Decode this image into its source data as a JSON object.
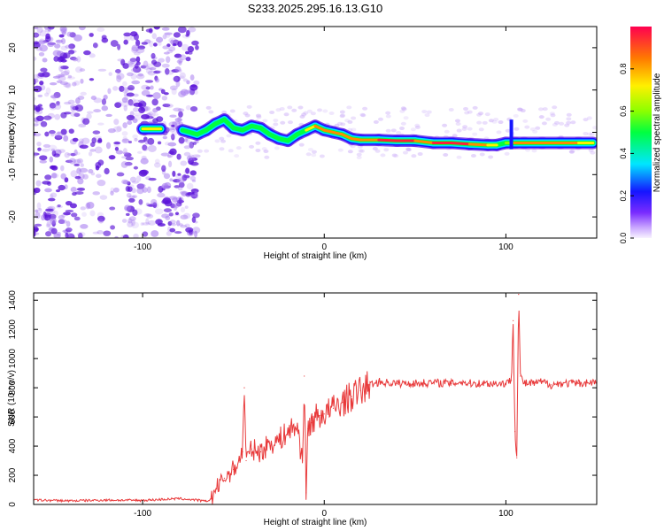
{
  "title": "S233.2025.295.16.13.G10",
  "colors": {
    "snr_line": "#e8393a",
    "blob": "#8a3ce6",
    "frame": "#000000"
  },
  "chart_data": [
    {
      "type": "heatmap",
      "name": "spectrogram",
      "xlabel": "Height of straight line (km)",
      "ylabel": "Frequency (Hz)",
      "xlim": [
        -160,
        150
      ],
      "ylim": [
        -25,
        25
      ],
      "xticks": [
        -100,
        0,
        100
      ],
      "xtick_labels": [
        "-100",
        "0",
        "100"
      ],
      "yticks": [
        20,
        10,
        0,
        -10,
        -20
      ],
      "ytick_labels": [
        "20",
        "10",
        "0",
        "-10",
        "-20"
      ],
      "ridge": {
        "description_hint": "frequency ridge of max normalized amplitude",
        "x": [
          -100,
          -90,
          -78,
          -70,
          -65,
          -60,
          -55,
          -50,
          -45,
          -40,
          -35,
          -30,
          -25,
          -20,
          -15,
          -10,
          -5,
          0,
          5,
          10,
          15,
          20,
          30,
          40,
          50,
          60,
          70,
          80,
          90,
          95,
          100,
          105,
          110,
          120,
          130,
          140,
          148
        ],
        "y": [
          0.8,
          0.8,
          0.5,
          -0.5,
          0.5,
          2.0,
          3.0,
          1.0,
          0.5,
          1.5,
          1.0,
          -0.5,
          -1.5,
          -2.0,
          -0.5,
          0.5,
          1.5,
          0.5,
          0.0,
          -0.5,
          -1.5,
          -1.8,
          -1.8,
          -2.0,
          -2.0,
          -2.5,
          -2.5,
          -2.8,
          -3.0,
          -3.0,
          -2.5,
          -2.5,
          -2.5,
          -2.5,
          -2.5,
          -2.5,
          -2.5
        ],
        "amplitude": [
          0.7,
          0.8,
          0.4,
          0.5,
          0.5,
          0.4,
          0.4,
          0.5,
          0.5,
          0.6,
          0.6,
          0.6,
          0.6,
          0.6,
          0.6,
          0.7,
          0.8,
          0.9,
          0.9,
          0.85,
          0.85,
          0.85,
          0.95,
          0.95,
          0.9,
          0.9,
          0.95,
          0.9,
          0.85,
          0.7,
          0.6,
          0.8,
          0.9,
          0.9,
          0.9,
          0.8,
          0.7
        ]
      },
      "noise_region": {
        "x_range": [
          -160,
          -70
        ],
        "y_range": [
          -25,
          25
        ]
      },
      "colorbar": {
        "label": "Normalized spectral amplitude",
        "ticks": [
          0.0,
          0.2,
          0.4,
          0.6,
          0.8
        ],
        "tick_labels": [
          "0.0",
          "0.2",
          "0.4",
          "0.6",
          "0.8"
        ],
        "range": [
          0,
          1
        ]
      }
    },
    {
      "type": "line",
      "name": "snr",
      "xlabel": "Height of straight line (km)",
      "ylabel": "SNR (10 * v/v)",
      "xlim": [
        -160,
        150
      ],
      "ylim": [
        0,
        1450
      ],
      "xticks": [
        -100,
        0,
        100
      ],
      "xtick_labels": [
        "-100",
        "0",
        "100"
      ],
      "yticks": [
        0,
        200,
        400,
        600,
        800,
        1000,
        1200,
        1400
      ],
      "ytick_labels": [
        "0",
        "200",
        "400",
        "600",
        "800",
        "1000",
        "1200",
        "1400"
      ],
      "series": [
        {
          "name": "SNR",
          "x": [
            -160,
            -140,
            -120,
            -100,
            -80,
            -70,
            -65,
            -62,
            -60,
            -55,
            -50,
            -47,
            -45,
            -44,
            -43,
            -40,
            -35,
            -30,
            -25,
            -20,
            -15,
            -12,
            -11,
            -10,
            -9,
            -7,
            -5,
            -2,
            0,
            5,
            10,
            15,
            20,
            25,
            30,
            40,
            50,
            60,
            70,
            75,
            80,
            90,
            100,
            103,
            104,
            105,
            106,
            107,
            108,
            110,
            115,
            120,
            125,
            130,
            140,
            150
          ],
          "y": [
            30,
            25,
            30,
            28,
            40,
            30,
            20,
            40,
            100,
            180,
            240,
            300,
            360,
            800,
            300,
            380,
            360,
            420,
            440,
            500,
            540,
            300,
            880,
            80,
            520,
            560,
            600,
            610,
            620,
            660,
            700,
            740,
            780,
            820,
            840,
            830,
            830,
            835,
            830,
            840,
            830,
            830,
            830,
            850,
            1260,
            500,
            320,
            1440,
            880,
            830,
            830,
            840,
            820,
            830,
            830,
            840
          ]
        }
      ]
    }
  ]
}
